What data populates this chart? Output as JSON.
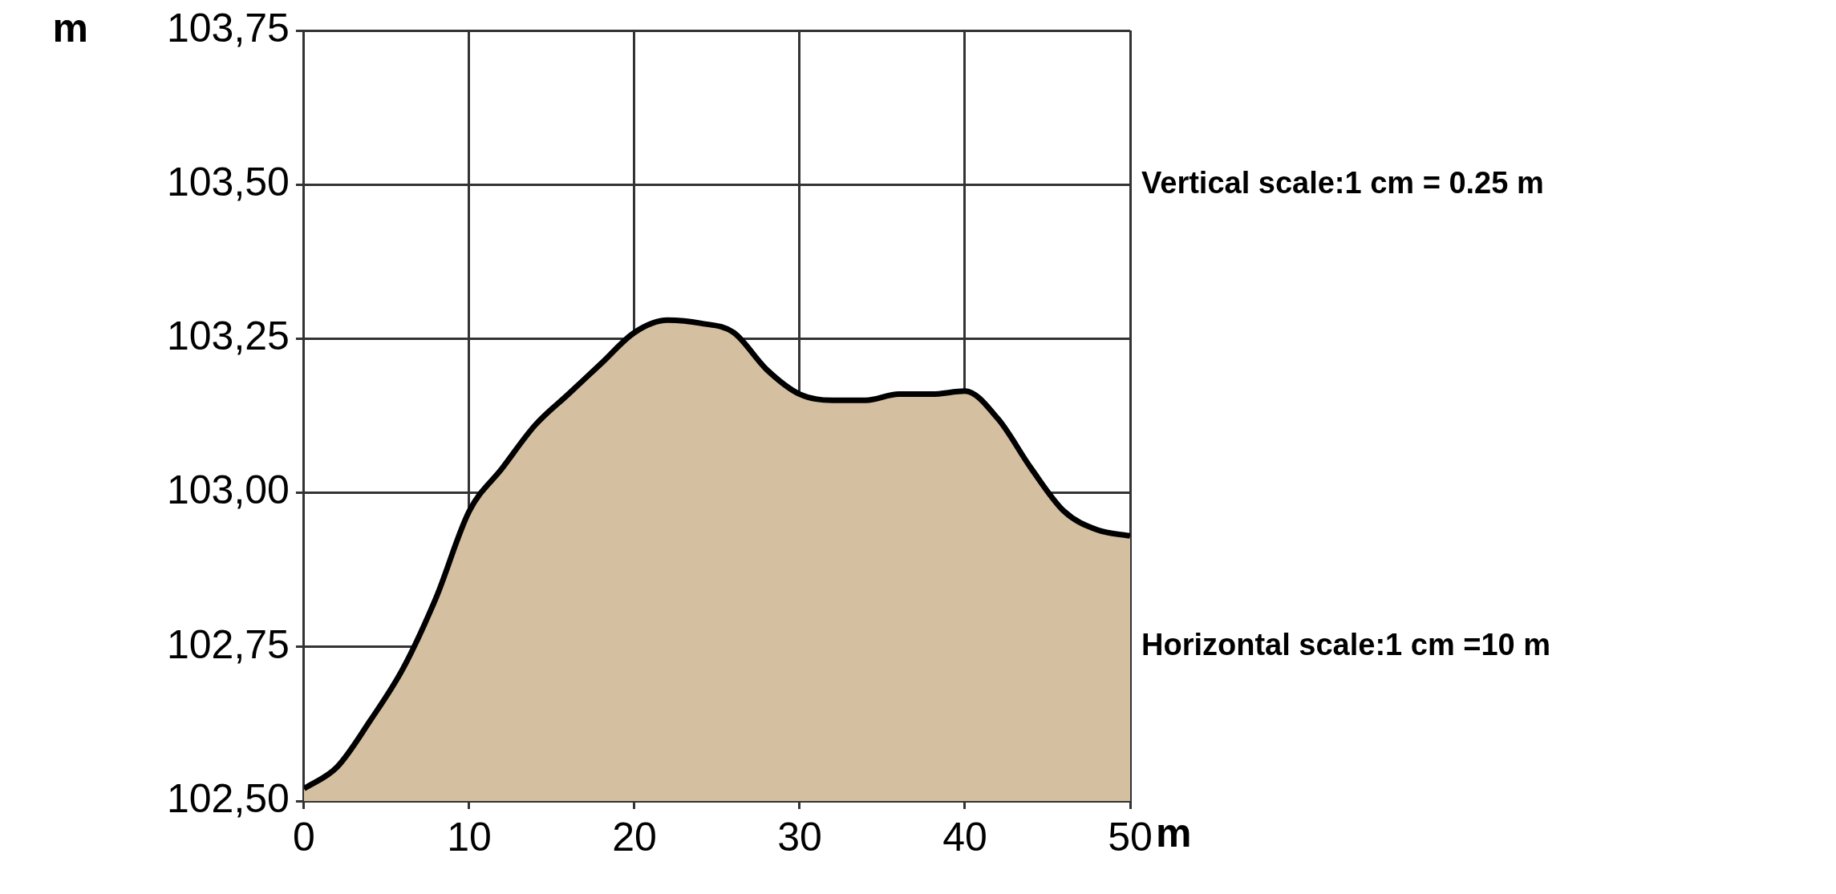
{
  "chart_data": {
    "type": "area",
    "xlabel": "m",
    "ylabel": "m",
    "x": [
      0,
      2,
      4,
      6,
      8,
      10,
      12,
      14,
      16,
      18,
      20,
      22,
      24,
      26,
      28,
      30,
      32,
      34,
      36,
      38,
      40,
      42,
      44,
      46,
      48,
      50
    ],
    "series": [
      {
        "color": "#d4bfa0",
        "values": [
          102.52,
          102.555,
          102.63,
          102.715,
          102.83,
          102.97,
          103.04,
          103.11,
          103.16,
          103.21,
          103.26,
          103.28,
          103.275,
          103.26,
          103.2,
          103.16,
          103.15,
          103.15,
          103.16,
          103.16,
          103.165,
          103.12,
          103.04,
          102.97,
          102.94,
          102.93
        ]
      }
    ],
    "xlim": [
      0,
      50
    ],
    "xticks": [
      0,
      10,
      20,
      30,
      40,
      50
    ],
    "ylim": [
      102.5,
      103.75
    ],
    "yticks": [
      {
        "value": 102.5,
        "label": "102,50"
      },
      {
        "value": 102.75,
        "label": "102,75"
      },
      {
        "value": 103,
        "label": "103,00"
      },
      {
        "value": 103.25,
        "label": "103,25"
      },
      {
        "value": 103.5,
        "label": "103,50"
      },
      {
        "value": 103.75,
        "label": "103,75"
      }
    ],
    "annotations": [
      "Vertical scale:1 cm = 0.25 m",
      "Horizontal scale:1 cm =10 m"
    ],
    "grid": true,
    "legend": false,
    "marker": "none"
  }
}
